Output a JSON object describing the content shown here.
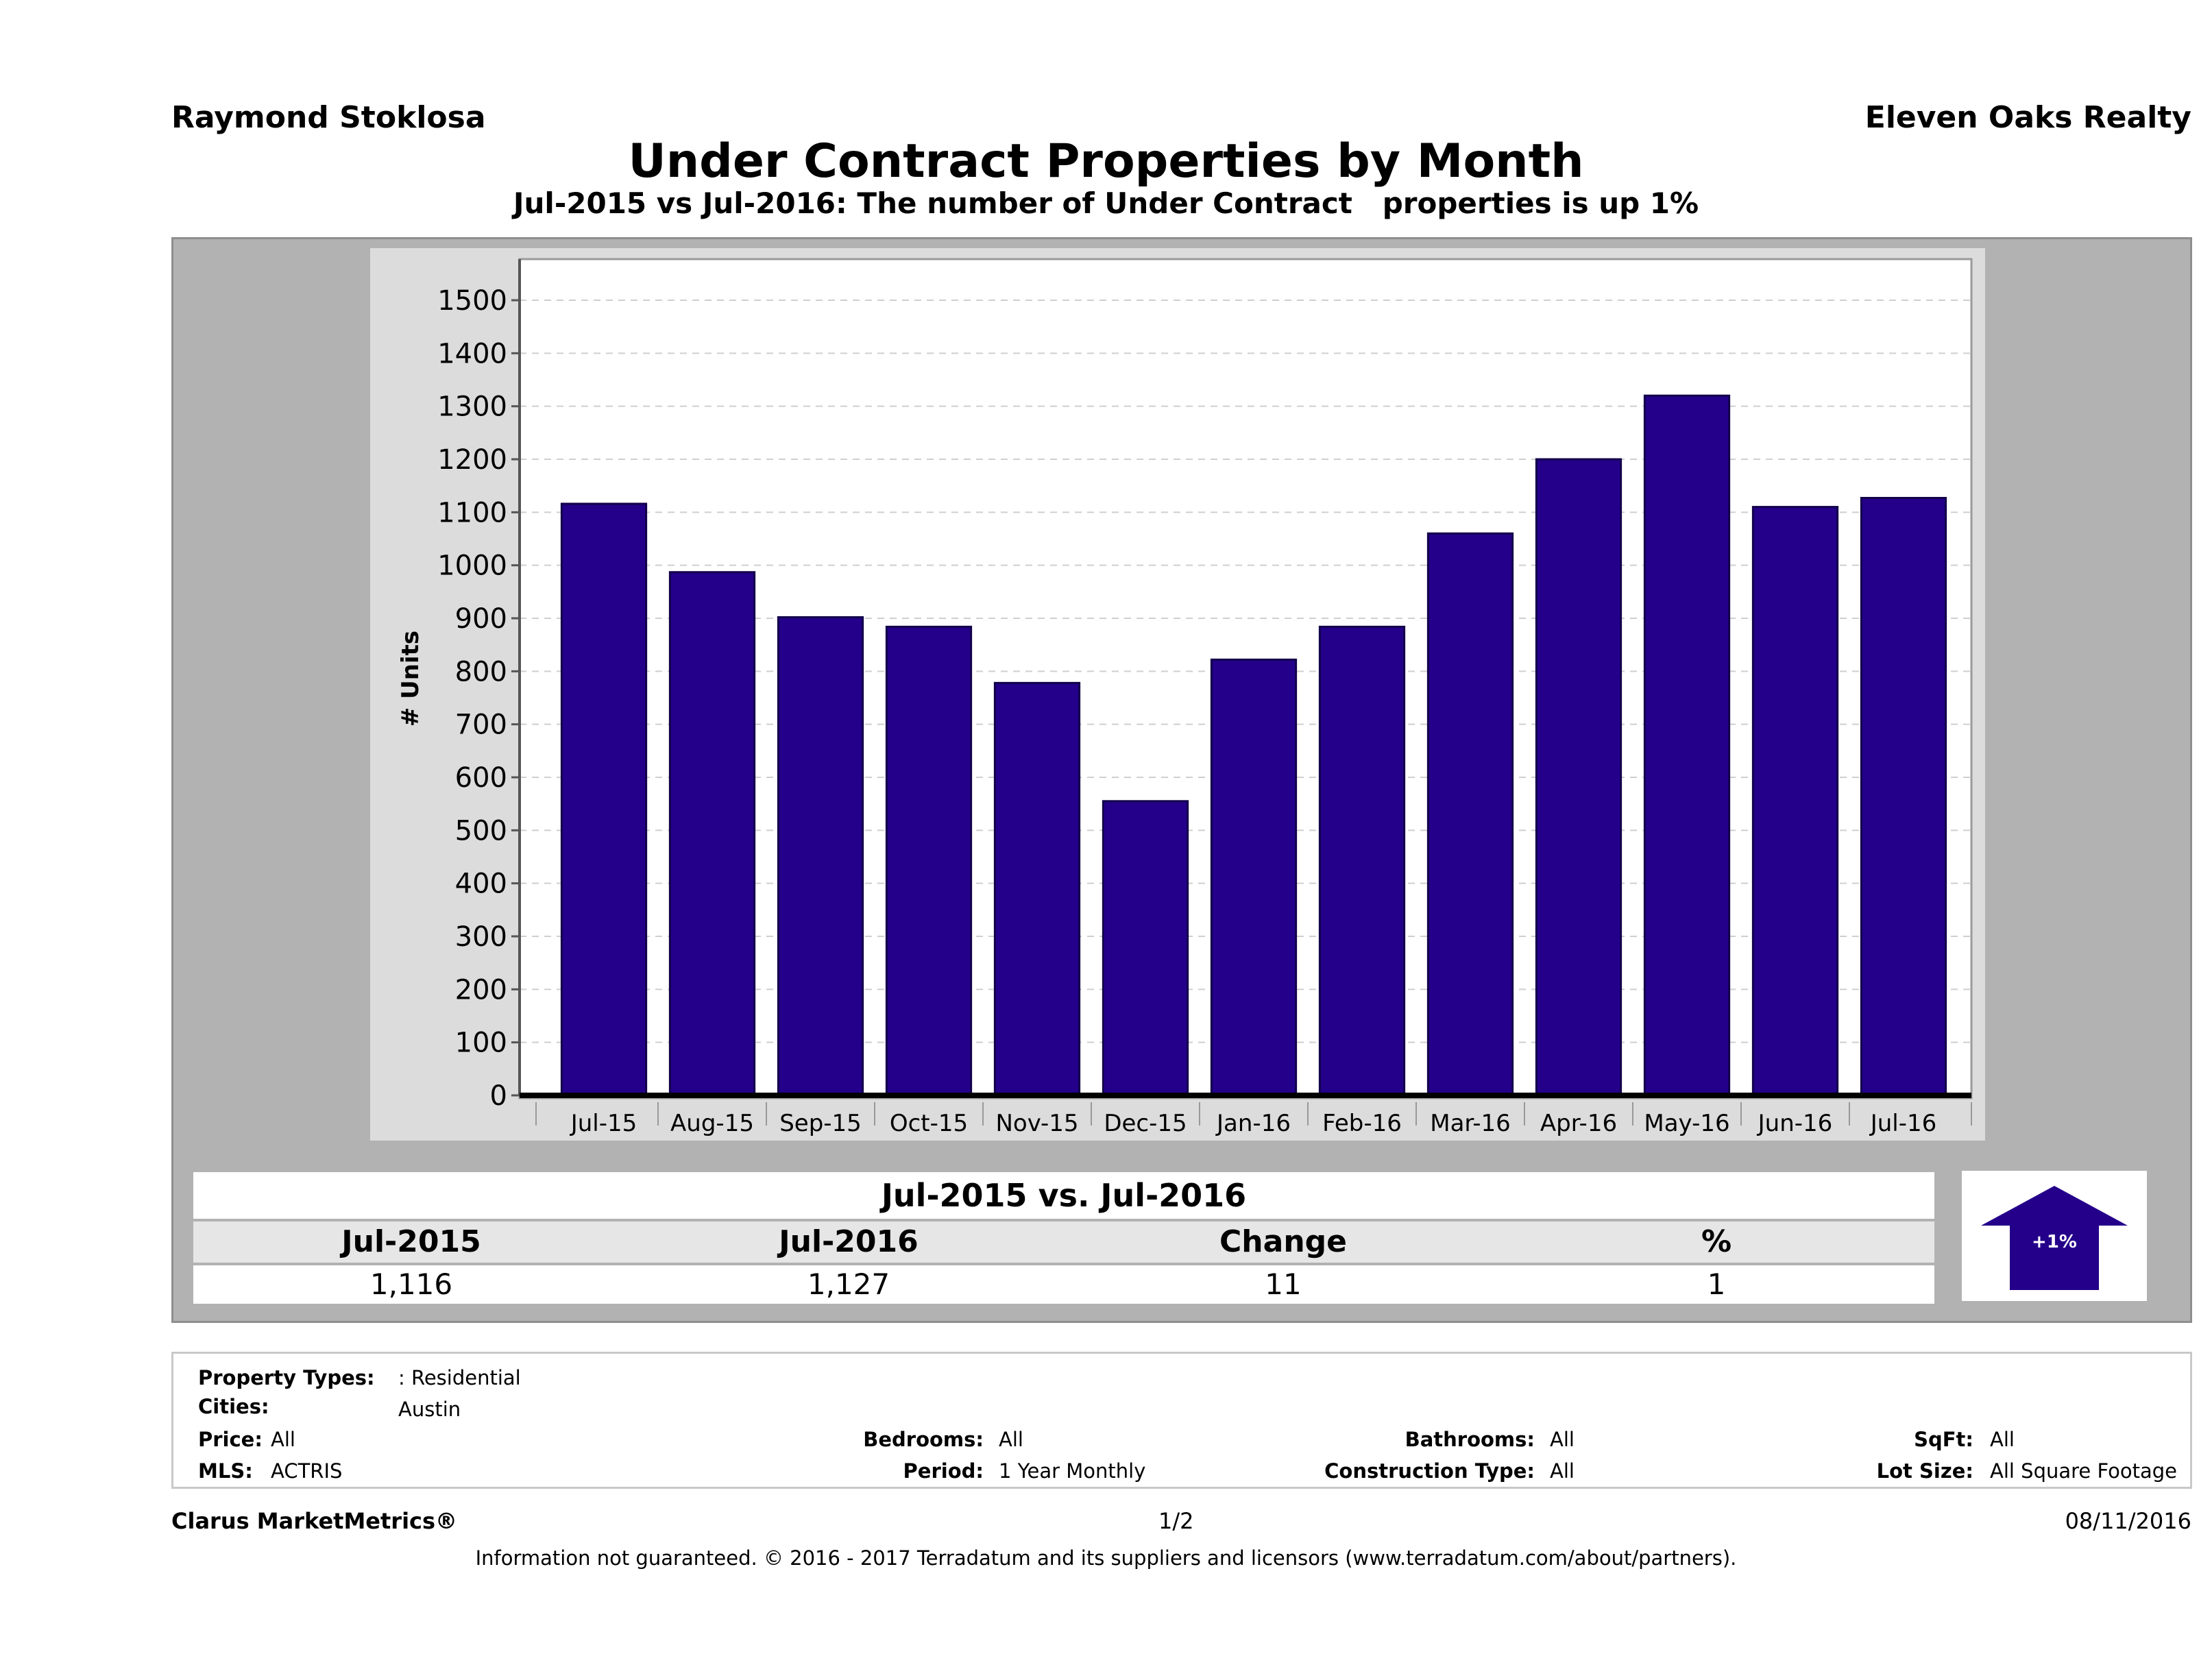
{
  "header": {
    "agent": "Raymond Stoklosa",
    "company": "Eleven Oaks Realty",
    "title": "Under Contract Properties by Month",
    "subtitle": "Jul-2015 vs Jul-2016: The number of Under Contract   properties is up 1%"
  },
  "chart_data": {
    "type": "bar",
    "categories": [
      "Jul-15",
      "Aug-15",
      "Sep-15",
      "Oct-15",
      "Nov-15",
      "Dec-15",
      "Jan-16",
      "Feb-16",
      "Mar-16",
      "Apr-16",
      "May-16",
      "Jun-16",
      "Jul-16"
    ],
    "values": [
      1116,
      987,
      902,
      884,
      778,
      555,
      822,
      884,
      1060,
      1200,
      1320,
      1110,
      1127
    ],
    "ylabel": "# Units",
    "ylim": [
      0,
      1500
    ],
    "yticks": [
      0,
      100,
      200,
      300,
      400,
      500,
      600,
      700,
      800,
      900,
      1000,
      1100,
      1200,
      1300,
      1400,
      1500
    ],
    "grid": true,
    "bar_color": "#24008a"
  },
  "comparison": {
    "header": "Jul-2015 vs. Jul-2016",
    "labels": [
      "Jul-2015",
      "Jul-2016",
      "Change",
      "%"
    ],
    "values": [
      "1,116",
      "1,127",
      "11",
      "1"
    ],
    "badge": "+1%",
    "badge_color": "#24008a"
  },
  "criteria": {
    "property_types_label": "Property Types:",
    "property_types_value": ": Residential",
    "cities_label": "Cities:",
    "cities_value": "Austin",
    "price_label": "Price:",
    "price_value": "All",
    "mls_label": "MLS:",
    "mls_value": "ACTRIS",
    "bedrooms_label": "Bedrooms:",
    "bedrooms_value": "All",
    "period_label": "Period:",
    "period_value": "1 Year Monthly",
    "bathrooms_label": "Bathrooms:",
    "bathrooms_value": "All",
    "construction_label": "Construction Type:",
    "construction_value": "All",
    "sqft_label": "SqFt:",
    "sqft_value": "All",
    "lotsize_label": "Lot Size:",
    "lotsize_value": "All Square Footage"
  },
  "footer": {
    "brand": "Clarus MarketMetrics®",
    "page": "1/2",
    "date": "08/11/2016",
    "disclaimer": "Information not guaranteed. © 2016 - 2017 Terradatum and its suppliers and licensors (www.terradatum.com/about/partners)."
  }
}
